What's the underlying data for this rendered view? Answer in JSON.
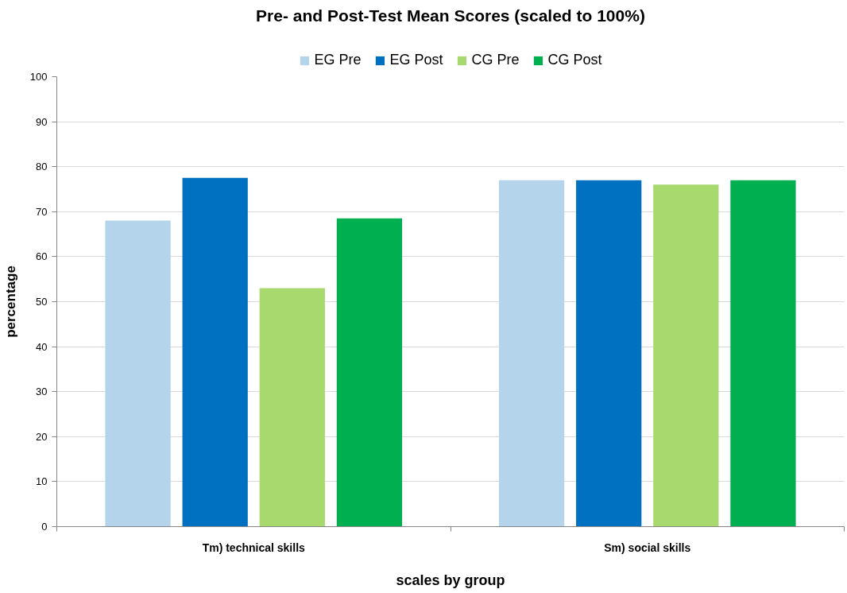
{
  "chart_data": {
    "type": "bar",
    "title": "Pre- and Post-Test Mean Scores (scaled to 100%)",
    "xlabel": "scales by group",
    "ylabel": "percentage",
    "categories": [
      "Tm) technical skills",
      "Sm) social skills"
    ],
    "series": [
      {
        "name": "EG Pre",
        "color": "#b4d4ec",
        "values": [
          68,
          77
        ]
      },
      {
        "name": "EG Post",
        "color": "#0070c0",
        "values": [
          77.5,
          77
        ]
      },
      {
        "name": "CG Pre",
        "color": "#a8d96f",
        "values": [
          53,
          76
        ]
      },
      {
        "name": "CG Post",
        "color": "#00b050",
        "values": [
          68.5,
          77
        ]
      }
    ],
    "ylim": [
      0,
      100
    ],
    "yticks": [
      0,
      10,
      20,
      30,
      40,
      50,
      60,
      70,
      80,
      90,
      100
    ],
    "grid": "y",
    "legend": "top"
  }
}
